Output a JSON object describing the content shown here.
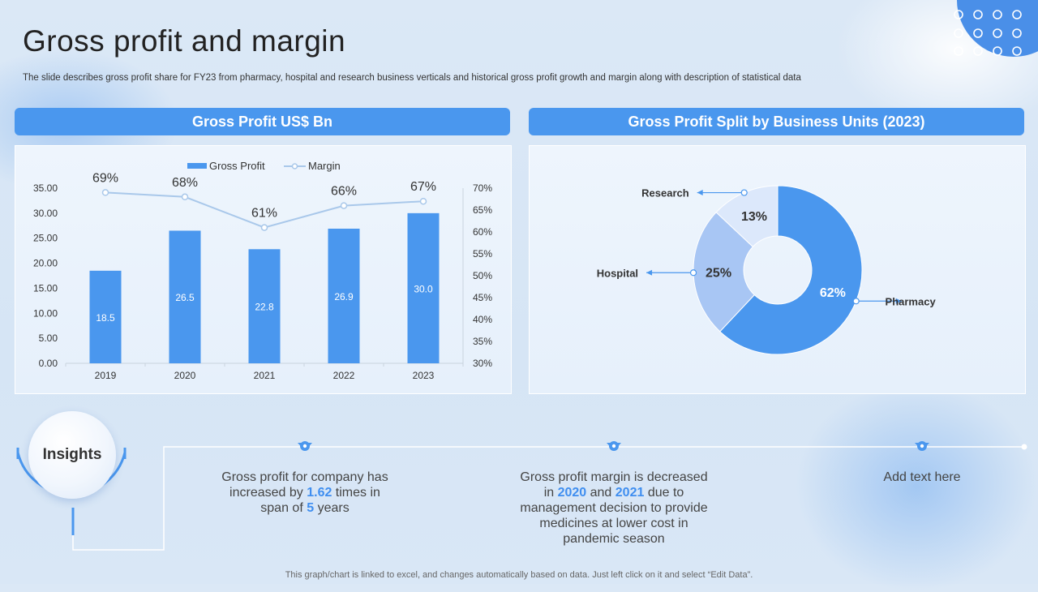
{
  "title": "Gross profit and margin",
  "subtitle": "The slide describes gross profit share for FY23 from pharmacy, hospital and research business verticals and historical gross profit growth and margin along with description of statistical data",
  "left_panel": {
    "header": "Gross Profit US$ Bn"
  },
  "right_panel": {
    "header": "Gross Profit Split by Business Units (2023)"
  },
  "chart_data": [
    {
      "type": "bar",
      "categories": [
        "2019",
        "2020",
        "2021",
        "2022",
        "2023"
      ],
      "series": [
        {
          "name": "Gross Profit",
          "type": "bar",
          "axis": "left",
          "values": [
            18.5,
            26.5,
            22.8,
            26.9,
            30.0
          ],
          "labels": [
            "18.5",
            "26.5",
            "22.8",
            "26.9",
            "30.0"
          ],
          "color": "#4a97ee"
        },
        {
          "name": "Margin",
          "type": "line",
          "axis": "right",
          "values": [
            69,
            68,
            61,
            66,
            67
          ],
          "labels": [
            "69%",
            "68%",
            "61%",
            "66%",
            "67%"
          ],
          "color": "#a9c8ea"
        }
      ],
      "y_left": {
        "min": 0,
        "max": 35,
        "ticks": [
          "0.00",
          "5.00",
          "10.00",
          "15.00",
          "20.00",
          "25.00",
          "30.00",
          "35.00"
        ]
      },
      "y_right": {
        "min": 30,
        "max": 70,
        "ticks": [
          "30%",
          "35%",
          "40%",
          "45%",
          "50%",
          "55%",
          "60%",
          "65%",
          "70%"
        ]
      },
      "legend_position": "top",
      "grid": false
    },
    {
      "type": "pie",
      "donut": true,
      "slices": [
        {
          "label": "Pharmacy",
          "value": 62,
          "display": "62%",
          "color": "#4a97ee"
        },
        {
          "label": "Hospital",
          "value": 25,
          "display": "25%",
          "color": "#a8c6f4"
        },
        {
          "label": "Research",
          "value": 13,
          "display": "13%",
          "color": "#dce8fb"
        }
      ]
    }
  ],
  "insights": {
    "label": "Insights",
    "items": [
      {
        "pre": "Gross profit for company has increased by ",
        "hl1": "1.62",
        "mid": " times in span of ",
        "hl2": "5",
        "post": " years"
      },
      {
        "pre": "Gross profit margin is decreased in ",
        "hl1": "2020",
        "mid": " and ",
        "hl2": "2021",
        "post": " due to management decision to provide medicines at lower cost in pandemic season"
      },
      {
        "pre": "Add text here"
      }
    ]
  },
  "footer": "This graph/chart is linked to excel, and changes automatically based on data. Just left click on it and select “Edit Data”."
}
